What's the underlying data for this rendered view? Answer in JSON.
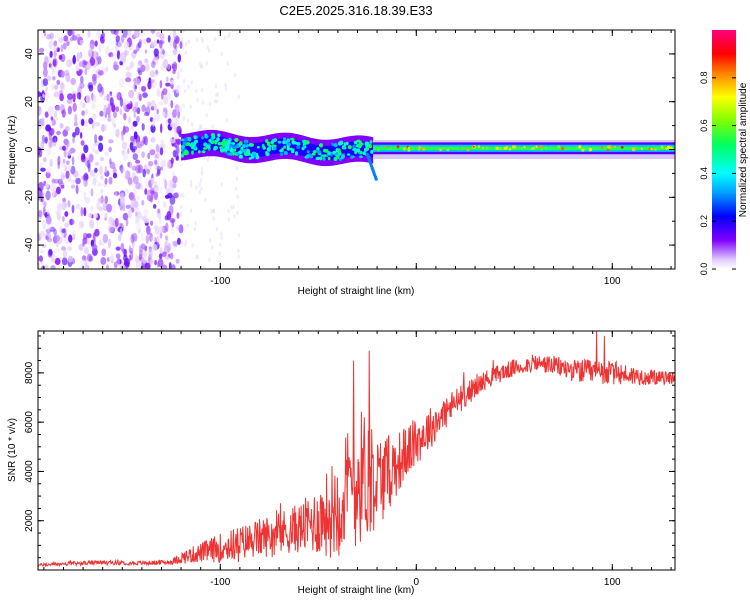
{
  "title": "C2E5.2025.316.18.39.E33",
  "chart_data": [
    {
      "type": "heatmap",
      "title": "C2E5.2025.316.18.39.E33",
      "xlabel": "Height of straight line (km)",
      "ylabel": "Frequency (Hz)",
      "xlim": [
        -193,
        132
      ],
      "ylim": [
        -50,
        50
      ],
      "xticks": [
        -100,
        0,
        100
      ],
      "xtick_labels": [
        "-100",
        "",
        "100"
      ],
      "yticks": [
        -40,
        -20,
        0,
        20,
        40
      ],
      "ytick_labels": [
        "-40",
        "-20",
        "0",
        "20",
        "40"
      ],
      "colorbar": {
        "label": "Normalized spectral amplitude",
        "range": [
          0,
          1
        ],
        "ticks": [
          0.0,
          0.2,
          0.4,
          0.6,
          0.8
        ],
        "tick_labels": [
          "0.0",
          "0.2",
          "0.4",
          "0.6",
          "0.8"
        ],
        "colors": [
          "#ffffff",
          "#c080ff",
          "#8000ff",
          "#0000ff",
          "#00ffff",
          "#00ff00",
          "#ffff00",
          "#ff8000",
          "#ff0000",
          "#ff00a0"
        ]
      },
      "regions": [
        {
          "name": "broadband noise",
          "x_range": [
            -193,
            -120
          ],
          "freq_range": [
            -50,
            50
          ],
          "amplitude": 0.15
        },
        {
          "name": "signal band",
          "x_range": [
            -120,
            -22
          ],
          "freq_range": [
            -7,
            7
          ],
          "amplitude": 0.4
        },
        {
          "name": "stable carrier",
          "x_range": [
            -22,
            132
          ],
          "freq_range": [
            -2,
            3
          ],
          "amplitude": 0.7
        }
      ]
    },
    {
      "type": "line",
      "xlabel": "Height of straight line (km)",
      "ylabel": "SNR (10 * v/v)",
      "xlim": [
        -193,
        132
      ],
      "ylim": [
        0,
        9700
      ],
      "xticks": [
        -100,
        0,
        100
      ],
      "xtick_labels": [
        "-100",
        "0",
        "100"
      ],
      "yticks": [
        2000,
        4000,
        6000,
        8000
      ],
      "ytick_labels": [
        "2000",
        "4000",
        "6000",
        "8000"
      ],
      "series": [
        {
          "name": "SNR",
          "color": "#ee3333",
          "x": [
            -193,
            -180,
            -160,
            -140,
            -125,
            -120,
            -110,
            -100,
            -90,
            -80,
            -70,
            -60,
            -50,
            -45,
            -40,
            -35,
            -30,
            -25,
            -22,
            -20,
            -15,
            -10,
            -5,
            0,
            5,
            10,
            15,
            20,
            25,
            30,
            35,
            40,
            50,
            60,
            70,
            80,
            90,
            100,
            110,
            120,
            132
          ],
          "values": [
            200,
            250,
            300,
            280,
            320,
            500,
            700,
            900,
            1100,
            1300,
            1500,
            1700,
            2000,
            2300,
            2700,
            3200,
            3700,
            4000,
            3800,
            3600,
            3900,
            4300,
            4800,
            5200,
            5600,
            6000,
            6400,
            6800,
            7100,
            7400,
            7700,
            7900,
            8200,
            8400,
            8300,
            8100,
            8000,
            8000,
            7900,
            7800,
            7800
          ],
          "noise_amplitude": [
            60,
            80,
            90,
            80,
            100,
            250,
            400,
            600,
            700,
            800,
            900,
            1000,
            1400,
            1800,
            2200,
            2600,
            2800,
            2700,
            2400,
            2000,
            1600,
            1300,
            1100,
            1000,
            900,
            800,
            700,
            600,
            500,
            450,
            400,
            380,
            350,
            350,
            400,
            450,
            550,
            500,
            400,
            300,
            250
          ],
          "peaks": [
            {
              "x": -24,
              "value": 8900
            },
            {
              "x": -32,
              "value": 8500
            },
            {
              "x": 92,
              "value": 9700
            },
            {
              "x": 96,
              "value": 9500
            }
          ]
        }
      ]
    }
  ]
}
